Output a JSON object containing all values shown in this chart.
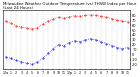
{
  "title": "Milwaukee Weather Outdoor Temperature (vs) THSW Index per Hour (Last 24 Hours)",
  "title_fontsize": 2.8,
  "bg_color": "#ffffff",
  "grid_color": "#bbbbbb",
  "temp_color": "#ff0000",
  "thsw_color": "#0000ff",
  "temp_values": [
    68,
    64,
    59,
    56,
    54,
    52,
    55,
    62,
    68,
    73,
    76,
    74,
    77,
    79,
    78,
    80,
    81,
    80,
    78,
    76,
    73,
    70,
    68,
    67
  ],
  "thsw_values": [
    -5,
    -8,
    -12,
    -15,
    -18,
    -20,
    -16,
    -8,
    2,
    12,
    20,
    18,
    24,
    28,
    26,
    30,
    32,
    30,
    26,
    22,
    18,
    14,
    12,
    14
  ],
  "hours": [
    "12a",
    "1",
    "2",
    "3",
    "4",
    "5",
    "6",
    "7",
    "8",
    "9",
    "10",
    "11",
    "12p",
    "1",
    "2",
    "3",
    "4",
    "5",
    "6",
    "7",
    "8",
    "9",
    "10",
    "11"
  ],
  "ylim_min": -30,
  "ylim_max": 90,
  "yticks": [
    -20,
    -10,
    0,
    10,
    20,
    30,
    40,
    50,
    60,
    70,
    80
  ],
  "ylabel_fontsize": 2.5,
  "xlabel_fontsize": 2.3
}
